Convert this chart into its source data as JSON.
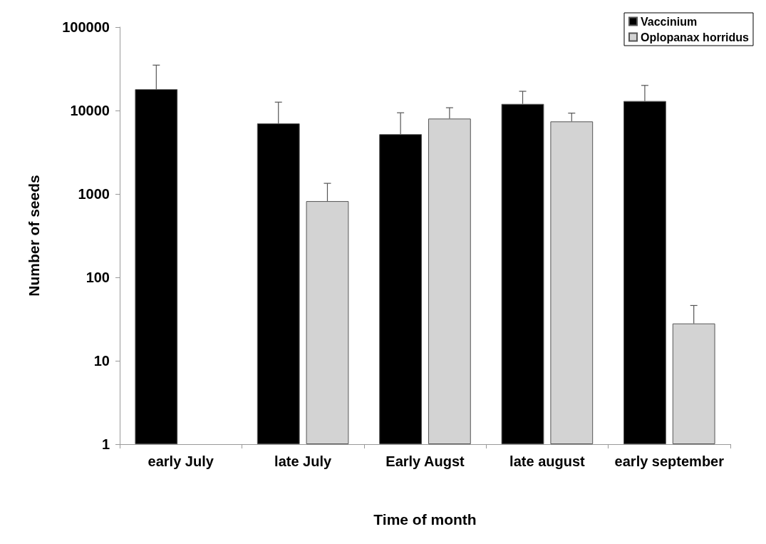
{
  "chart_data": {
    "type": "bar",
    "xlabel": "Time of month",
    "ylabel": "Number of seeds",
    "categories": [
      "early July",
      "late July",
      "Early Augst",
      "late august",
      "early september"
    ],
    "series": [
      {
        "name": "Vaccinium",
        "color": "#000000",
        "values": [
          18000,
          7000,
          5200,
          12000,
          13000
        ],
        "errors": [
          [
            18000,
            35000
          ],
          [
            7000,
            12600
          ],
          [
            5200,
            9400
          ],
          [
            12000,
            17000
          ],
          [
            13000,
            20000
          ]
        ]
      },
      {
        "name": "Oplopanax horridus",
        "color": "#d3d3d3",
        "values": [
          null,
          820,
          8000,
          7400,
          28
        ],
        "errors": [
          null,
          [
            820,
            1340
          ],
          [
            8000,
            10800
          ],
          [
            7400,
            9300
          ],
          [
            28,
            46
          ]
        ]
      }
    ],
    "log": "y",
    "ylim": [
      1,
      100000
    ],
    "yticks": [
      1,
      10,
      100,
      1000,
      10000,
      100000
    ],
    "grid": false,
    "legend": "top right"
  }
}
